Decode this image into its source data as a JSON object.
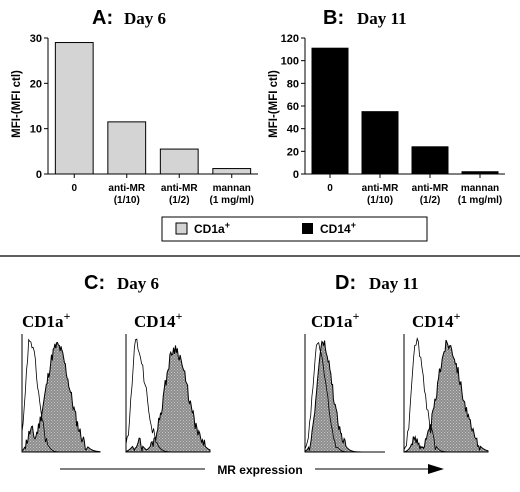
{
  "chart_data": [
    {
      "panel": "A:",
      "title": "Day 6",
      "type": "bar",
      "ylabel": "MFI-(MFI ctl)",
      "ylim": [
        0,
        30
      ],
      "yticks": [
        "0",
        "10",
        "20",
        "30"
      ],
      "categories": [
        {
          "line1": "0",
          "line2": ""
        },
        {
          "line1": "anti-MR",
          "line2": "(1/10)"
        },
        {
          "line1": "anti-MR",
          "line2": "(1/2)"
        },
        {
          "line1": "mannan",
          "line2": "(1 mg/ml)"
        }
      ],
      "values": [
        29,
        11.5,
        5.5,
        1.2
      ],
      "fill": "#d4d4d4"
    },
    {
      "panel": "B:",
      "title": "Day 11",
      "type": "bar",
      "ylabel": "MFI-(MFI ctl)",
      "ylim": [
        0,
        120
      ],
      "yticks": [
        "0",
        "20",
        "40",
        "60",
        "80",
        "100",
        "120"
      ],
      "categories": [
        {
          "line1": "0",
          "line2": ""
        },
        {
          "line1": "anti-MR",
          "line2": "(1/10)"
        },
        {
          "line1": "anti-MR",
          "line2": "(1/2)"
        },
        {
          "line1": "mannan",
          "line2": "(1 mg/ml)"
        }
      ],
      "values": [
        111,
        55,
        24,
        2
      ],
      "fill": "#000000"
    }
  ],
  "legend": [
    {
      "label": "CD1a",
      "sup": "+",
      "color": "#d4d4d4"
    },
    {
      "label": "CD14",
      "sup": "+",
      "color": "#000000"
    }
  ],
  "histograms": {
    "panels": [
      {
        "panel": "C:",
        "title": "Day 6"
      },
      {
        "panel": "D:",
        "title": "Day 11"
      }
    ],
    "sub_labels": [
      {
        "label": "CD1a",
        "sup": "+"
      },
      {
        "label": "CD14",
        "sup": "+"
      },
      {
        "label": "CD1a",
        "sup": "+"
      },
      {
        "label": "CD14",
        "sup": "+"
      }
    ],
    "xlabel": "MR expression",
    "shade_color": "#9a9a9a"
  }
}
